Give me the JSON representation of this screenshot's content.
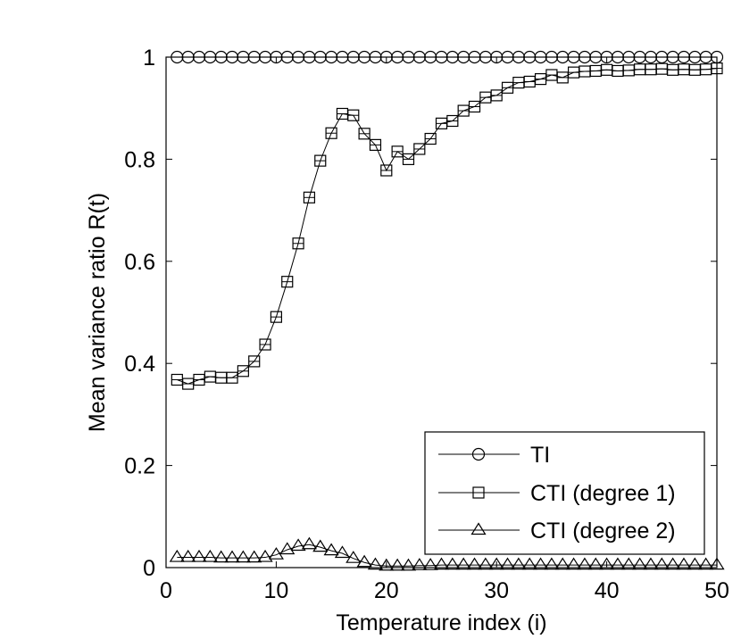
{
  "chart_data": {
    "type": "line",
    "title": "",
    "xlabel": "Temperature index (i)",
    "ylabel": "Mean variance ratio R(t)",
    "xlim": [
      0,
      50
    ],
    "ylim": [
      0,
      1
    ],
    "xticks": [
      0,
      10,
      20,
      30,
      40,
      50
    ],
    "yticks": [
      0,
      0.2,
      0.4,
      0.6,
      0.8,
      1
    ],
    "xtick_labels": [
      "0",
      "10",
      "20",
      "30",
      "40",
      "50"
    ],
    "ytick_labels": [
      "0",
      "0.2",
      "0.4",
      "0.6",
      "0.8",
      "1"
    ],
    "grid": false,
    "legend_position": "bottom-right",
    "x": [
      1,
      2,
      3,
      4,
      5,
      6,
      7,
      8,
      9,
      10,
      11,
      12,
      13,
      14,
      15,
      16,
      17,
      18,
      19,
      20,
      21,
      22,
      23,
      24,
      25,
      26,
      27,
      28,
      29,
      30,
      31,
      32,
      33,
      34,
      35,
      36,
      37,
      38,
      39,
      40,
      41,
      42,
      43,
      44,
      45,
      46,
      47,
      48,
      49,
      50
    ],
    "series": [
      {
        "name": "TI",
        "marker": "circle",
        "values": [
          1,
          1,
          1,
          1,
          1,
          1,
          1,
          1,
          1,
          1,
          1,
          1,
          1,
          1,
          1,
          1,
          1,
          1,
          1,
          1,
          1,
          1,
          1,
          1,
          1,
          1,
          1,
          1,
          1,
          1,
          1,
          1,
          1,
          1,
          1,
          1,
          1,
          1,
          1,
          1,
          1,
          1,
          1,
          1,
          1,
          1,
          1,
          1,
          1,
          1
        ]
      },
      {
        "name": "CTI (degree 1)",
        "marker": "square",
        "values": [
          0.368,
          0.36,
          0.368,
          0.374,
          0.372,
          0.372,
          0.385,
          0.404,
          0.437,
          0.491,
          0.56,
          0.635,
          0.725,
          0.797,
          0.851,
          0.889,
          0.886,
          0.85,
          0.828,
          0.778,
          0.815,
          0.8,
          0.82,
          0.84,
          0.87,
          0.875,
          0.895,
          0.903,
          0.921,
          0.925,
          0.94,
          0.95,
          0.952,
          0.957,
          0.965,
          0.96,
          0.97,
          0.972,
          0.973,
          0.975,
          0.973,
          0.974,
          0.976,
          0.976,
          0.977,
          0.975,
          0.976,
          0.975,
          0.976,
          0.978
        ]
      },
      {
        "name": "CTI (degree 2)",
        "marker": "triangle",
        "values": [
          0.02,
          0.02,
          0.02,
          0.02,
          0.019,
          0.019,
          0.019,
          0.019,
          0.02,
          0.025,
          0.035,
          0.042,
          0.045,
          0.04,
          0.033,
          0.028,
          0.018,
          0.01,
          0.005,
          0.003,
          0.003,
          0.003,
          0.004,
          0.004,
          0.005,
          0.005,
          0.005,
          0.005,
          0.005,
          0.005,
          0.005,
          0.005,
          0.005,
          0.005,
          0.005,
          0.005,
          0.005,
          0.005,
          0.005,
          0.005,
          0.005,
          0.005,
          0.005,
          0.005,
          0.005,
          0.005,
          0.005,
          0.005,
          0.005,
          0.005
        ]
      }
    ]
  }
}
